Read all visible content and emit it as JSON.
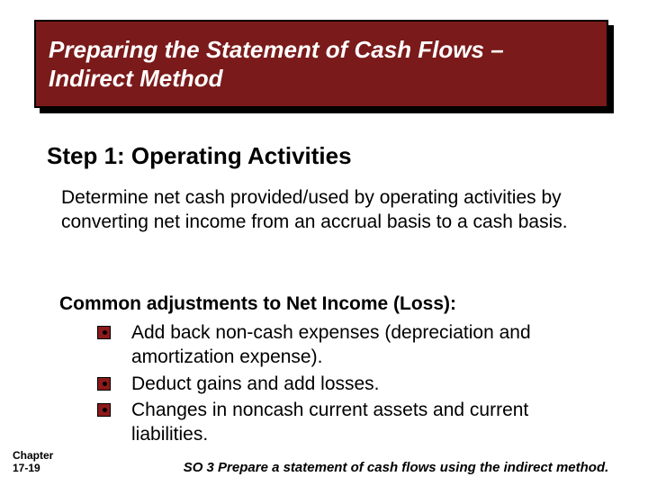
{
  "colors": {
    "title_bg": "#7a1a1a",
    "title_text": "#ffffff",
    "bullet_fill": "#8b1a1a",
    "page_bg": "#ffffff",
    "text": "#000000"
  },
  "typography": {
    "family": "Comic Sans MS",
    "title_fontsize": 26,
    "heading_fontsize": 26,
    "body_fontsize": 21,
    "footer_fontsize": 15,
    "chapter_fontsize": 12
  },
  "title": "Preparing the Statement of Cash Flows – Indirect Method",
  "step_heading": "Step 1: Operating Activities",
  "body_para": "Determine net cash provided/used by operating activities by converting net income from an accrual basis to a cash basis.",
  "adjust_heading": "Common adjustments to Net Income (Loss):",
  "bullets": {
    "b0": "Add back non-cash expenses (depreciation and amortization expense).",
    "b1": "Deduct gains and add losses.",
    "b2": "Changes in noncash current assets and current liabilities."
  },
  "chapter_label": "Chapter\n17-19",
  "so_footer": "SO 3  Prepare a statement of cash flows using the indirect method."
}
